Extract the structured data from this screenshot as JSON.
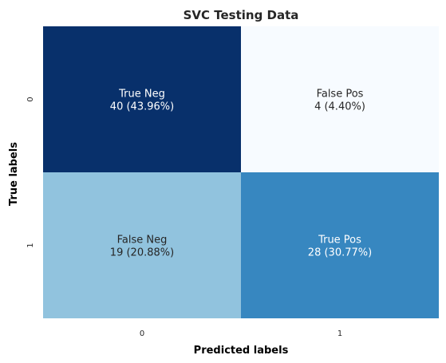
{
  "chart_data": {
    "type": "heatmap",
    "title": "SVC Testing Data",
    "xlabel": "Predicted labels",
    "ylabel": "True labels",
    "x_categories": [
      "0",
      "1"
    ],
    "y_categories": [
      "0",
      "1"
    ],
    "values": [
      [
        40,
        4
      ],
      [
        19,
        28
      ]
    ],
    "cell_labels": [
      [
        "True Neg\n40 (43.96%)",
        "False Pos\n4 (4.40%)"
      ],
      [
        "False Neg\n19 (20.88%)",
        "True Pos\n28 (30.77%)"
      ]
    ],
    "colormap": "Blues",
    "value_range": [
      4,
      40
    ],
    "colorbar": false,
    "colors": {
      "cells": [
        [
          "#08306b",
          "#f7fbff"
        ],
        [
          "#91c3de",
          "#3787c0"
        ]
      ],
      "text": [
        [
          "#ffffff",
          "#262626"
        ],
        [
          "#262626",
          "#ffffff"
        ]
      ]
    }
  }
}
